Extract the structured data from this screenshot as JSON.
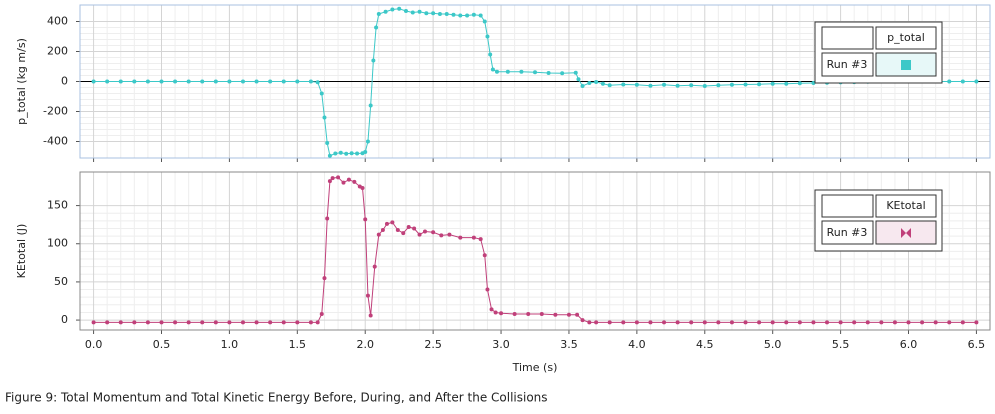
{
  "chart_data": [
    {
      "type": "line",
      "y_label": "p_total (kg m/s)",
      "legend_title": "p_total",
      "xlim": [
        -0.1,
        6.6
      ],
      "ylim": [
        -510,
        510
      ],
      "xticks": [
        0,
        0.5,
        1,
        1.5,
        2,
        2.5,
        3,
        3.5,
        4,
        4.5,
        5,
        5.5,
        6,
        6.5
      ],
      "yticks": [
        -400,
        -200,
        0,
        200,
        400
      ],
      "grid": true,
      "series": [
        {
          "name": "Run #3",
          "color": "#3cc8c8",
          "x": [
            0,
            0.1,
            0.2,
            0.3,
            0.4,
            0.5,
            0.6,
            0.7,
            0.8,
            0.9,
            1.0,
            1.1,
            1.2,
            1.3,
            1.4,
            1.5,
            1.6,
            1.65,
            1.68,
            1.7,
            1.72,
            1.74,
            1.78,
            1.82,
            1.86,
            1.9,
            1.94,
            1.98,
            2.0,
            2.02,
            2.04,
            2.06,
            2.08,
            2.1,
            2.15,
            2.2,
            2.25,
            2.3,
            2.35,
            2.4,
            2.45,
            2.5,
            2.55,
            2.6,
            2.65,
            2.7,
            2.75,
            2.8,
            2.85,
            2.88,
            2.9,
            2.92,
            2.94,
            2.97,
            3.05,
            3.15,
            3.25,
            3.35,
            3.45,
            3.55,
            3.57,
            3.6,
            3.65,
            3.7,
            3.75,
            3.8,
            3.9,
            4.0,
            4.1,
            4.2,
            4.3,
            4.4,
            4.5,
            4.6,
            4.7,
            4.8,
            4.9,
            5.0,
            5.1,
            5.2,
            5.3,
            5.4,
            5.5,
            5.6,
            5.7,
            5.8,
            5.9,
            6.0,
            6.1,
            6.2,
            6.3,
            6.4,
            6.5
          ],
          "values": [
            0,
            0,
            0,
            0,
            0,
            0,
            0,
            0,
            0,
            0,
            0,
            0,
            0,
            0,
            0,
            0,
            0,
            -5,
            -80,
            -240,
            -410,
            -495,
            -480,
            -475,
            -482,
            -478,
            -480,
            -478,
            -470,
            -400,
            -160,
            140,
            360,
            450,
            465,
            480,
            485,
            470,
            460,
            465,
            455,
            455,
            450,
            450,
            445,
            440,
            440,
            445,
            440,
            400,
            300,
            180,
            80,
            65,
            65,
            65,
            62,
            57,
            55,
            58,
            15,
            -30,
            -10,
            -3,
            -15,
            -25,
            -20,
            -22,
            -28,
            -22,
            -28,
            -25,
            -30,
            -25,
            -22,
            -20,
            -18,
            -15,
            -15,
            -12,
            -10,
            -8,
            -6,
            -4,
            -2,
            0,
            0,
            0,
            0,
            0,
            0,
            0,
            0
          ]
        }
      ]
    },
    {
      "type": "line",
      "y_label": "KEtotal (J)",
      "x_label": "Time (s)",
      "legend_title": "KEtotal",
      "xlim": [
        -0.1,
        6.6
      ],
      "ylim": [
        -13,
        194
      ],
      "xticks": [
        {
          "value": 0,
          "label": "0.0"
        },
        {
          "value": 0.5,
          "label": "0.5"
        },
        {
          "value": 1,
          "label": "1.0"
        },
        {
          "value": 1.5,
          "label": "1.5"
        },
        {
          "value": 2,
          "label": "2.0"
        },
        {
          "value": 2.5,
          "label": "2.5"
        },
        {
          "value": 3,
          "label": "3.0"
        },
        {
          "value": 3.5,
          "label": "3.5"
        },
        {
          "value": 4,
          "label": "4.0"
        },
        {
          "value": 4.5,
          "label": "4.5"
        },
        {
          "value": 5,
          "label": "5.0"
        },
        {
          "value": 5.5,
          "label": "5.5"
        },
        {
          "value": 6,
          "label": "6.0"
        },
        {
          "value": 6.5,
          "label": "6.5"
        }
      ],
      "yticks": [
        0,
        50,
        100,
        150
      ],
      "grid": true,
      "series": [
        {
          "name": "Run #3",
          "color": "#c0407a",
          "x": [
            0,
            0.1,
            0.2,
            0.3,
            0.4,
            0.5,
            0.6,
            0.7,
            0.8,
            0.9,
            1.0,
            1.1,
            1.2,
            1.3,
            1.4,
            1.5,
            1.6,
            1.65,
            1.68,
            1.7,
            1.72,
            1.74,
            1.76,
            1.8,
            1.84,
            1.88,
            1.92,
            1.96,
            1.98,
            2.0,
            2.02,
            2.04,
            2.07,
            2.1,
            2.13,
            2.16,
            2.2,
            2.24,
            2.28,
            2.32,
            2.36,
            2.4,
            2.44,
            2.5,
            2.56,
            2.62,
            2.7,
            2.8,
            2.85,
            2.88,
            2.9,
            2.93,
            2.96,
            3.0,
            3.1,
            3.2,
            3.3,
            3.4,
            3.5,
            3.56,
            3.6,
            3.65,
            3.7,
            3.8,
            3.9,
            4.0,
            4.1,
            4.2,
            4.3,
            4.4,
            4.5,
            4.6,
            4.7,
            4.8,
            4.9,
            5.0,
            5.1,
            5.2,
            5.3,
            5.4,
            5.5,
            5.6,
            5.7,
            5.8,
            5.9,
            6.0,
            6.1,
            6.2,
            6.3,
            6.4,
            6.5
          ],
          "values": [
            -3,
            -3,
            -3,
            -3,
            -3,
            -3,
            -3,
            -3,
            -3,
            -3,
            -3,
            -3,
            -3,
            -3,
            -3,
            -3,
            -3,
            -3,
            8,
            55,
            133,
            182,
            186,
            187,
            180,
            184,
            181,
            175,
            173,
            132,
            32,
            6,
            70,
            112,
            118,
            126,
            128,
            118,
            114,
            122,
            120,
            112,
            116,
            115,
            111,
            112,
            108,
            108,
            106,
            85,
            40,
            14,
            10,
            9,
            8,
            8,
            8,
            7,
            7,
            7,
            0,
            -3,
            -3,
            -3,
            -3,
            -3,
            -3,
            -3,
            -3,
            -3,
            -3,
            -3,
            -3,
            -3,
            -3,
            -3,
            -3,
            -3,
            -3,
            -3,
            -3,
            -3,
            -3,
            -3,
            -3,
            -3,
            -3,
            -3,
            -3,
            -3,
            -3
          ]
        }
      ]
    }
  ],
  "caption": "Figure 9: Total Momentum and Total Kinetic Energy Before, During, and After the Collisions"
}
